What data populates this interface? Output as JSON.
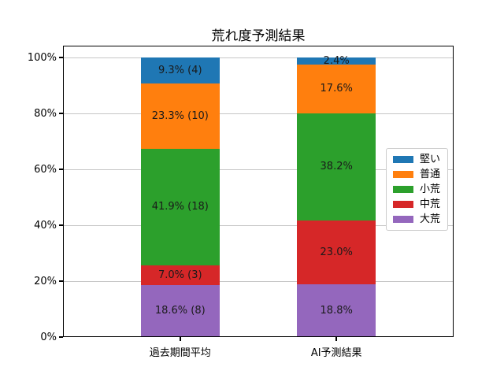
{
  "title": "荒れ度予測結果",
  "chart_data": {
    "type": "bar",
    "stacked": true,
    "title": "荒れ度予測結果",
    "categories": [
      "過去期間平均",
      "AI予測結果"
    ],
    "series": [
      {
        "name": "大荒",
        "color": "#9467bd",
        "values": [
          18.6,
          18.8
        ],
        "labels": [
          "18.6% (8)",
          "18.8%"
        ]
      },
      {
        "name": "中荒",
        "color": "#d62728",
        "values": [
          7.0,
          23.0
        ],
        "labels": [
          "7.0% (3)",
          "23.0%"
        ]
      },
      {
        "name": "小荒",
        "color": "#2ca02c",
        "values": [
          41.9,
          38.2
        ],
        "labels": [
          "41.9% (18)",
          "38.2%"
        ]
      },
      {
        "name": "普通",
        "color": "#ff7f0e",
        "values": [
          23.3,
          17.6
        ],
        "labels": [
          "23.3% (10)",
          "17.6%"
        ]
      },
      {
        "name": "堅い",
        "color": "#1f77b4",
        "values": [
          9.3,
          2.4
        ],
        "labels": [
          "9.3% (4)",
          "2.4%"
        ]
      }
    ],
    "series_order": "bottom-to-top",
    "legend": {
      "position": "center right",
      "entries": [
        {
          "label": "堅い",
          "color": "#1f77b4"
        },
        {
          "label": "普通",
          "color": "#ff7f0e"
        },
        {
          "label": "小荒",
          "color": "#2ca02c"
        },
        {
          "label": "中荒",
          "color": "#d62728"
        },
        {
          "label": "大荒",
          "color": "#9467bd"
        }
      ]
    },
    "y_axis": {
      "ticks": [
        {
          "label": "0%",
          "value": 0
        },
        {
          "label": "20%",
          "value": 20
        },
        {
          "label": "40%",
          "value": 40
        },
        {
          "label": "60%",
          "value": 60
        },
        {
          "label": "80%",
          "value": 80
        },
        {
          "label": "100%",
          "value": 100
        }
      ],
      "range": [
        0,
        100
      ]
    },
    "grid": true,
    "layout": {
      "bar_centers_pct": [
        30,
        70
      ],
      "bar_width_pct": 20.16
    }
  }
}
